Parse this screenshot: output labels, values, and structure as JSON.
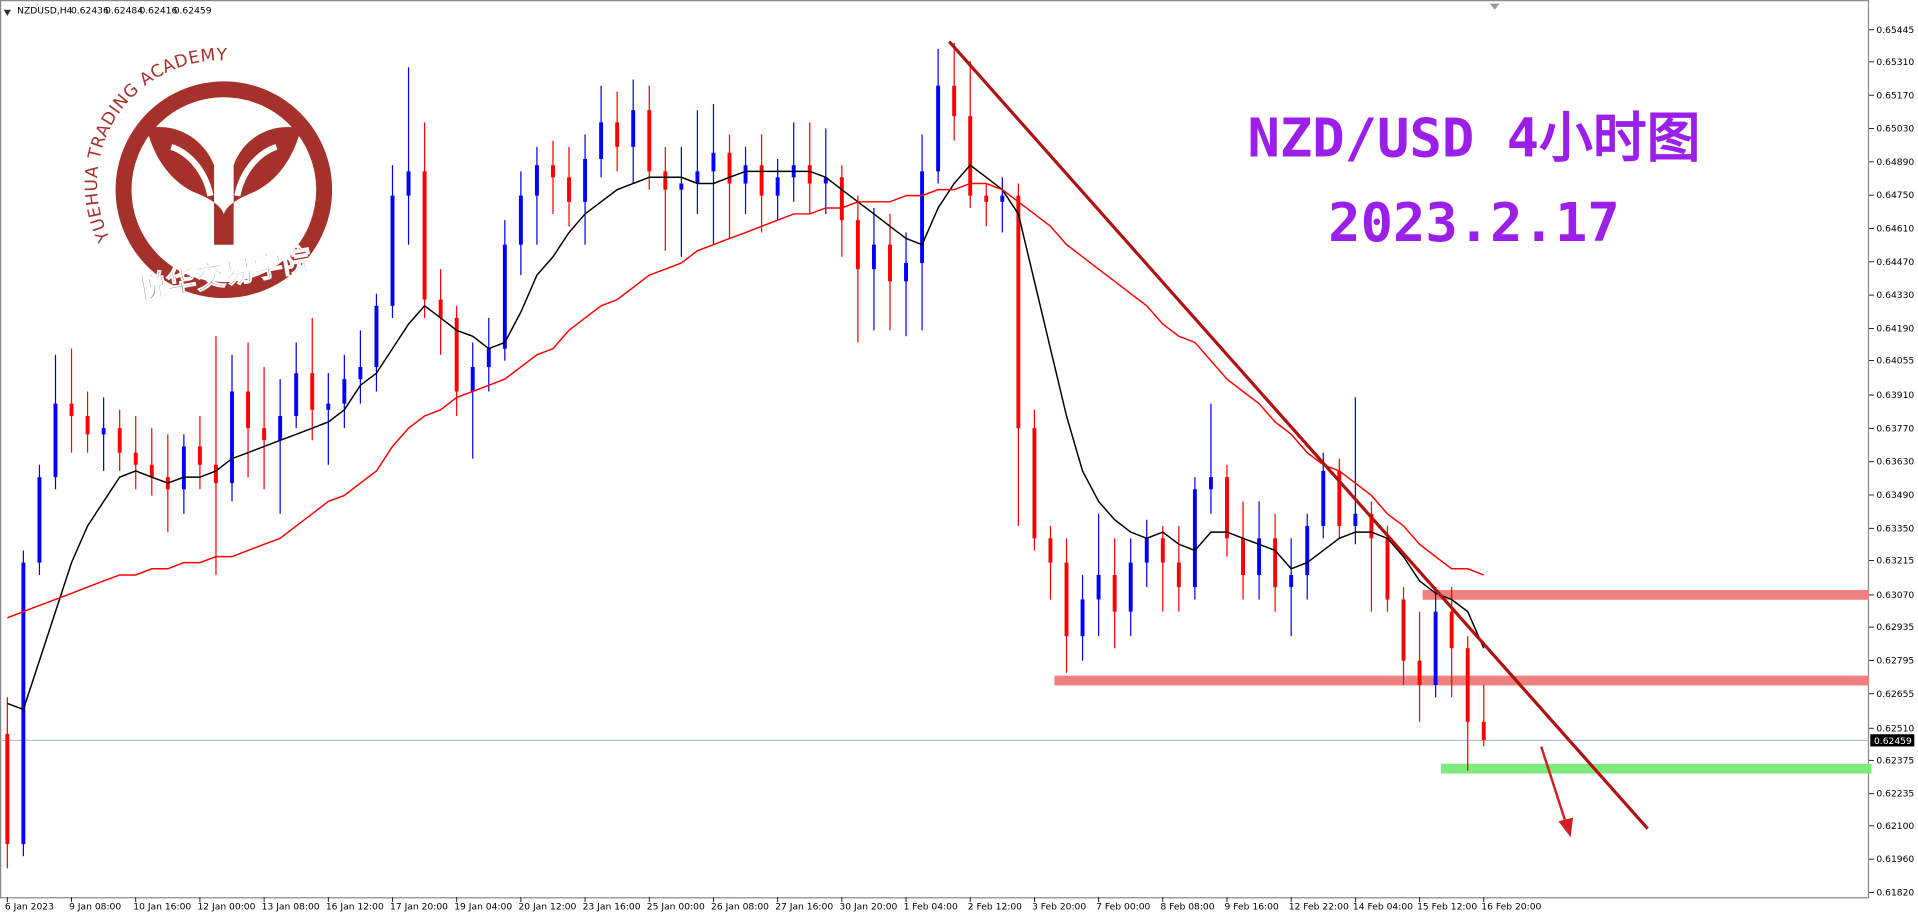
{
  "header": {
    "symbol": "NZDUSD,H4",
    "ohlc": [
      0.62436,
      0.62484,
      0.62416,
      0.62459
    ]
  },
  "logo": {
    "arc_text": "YUEHUA TRADING ACADEMY",
    "name": "悦华交易学院"
  },
  "chart_data": {
    "type": "candlestick",
    "title": "NZD/USD 4小时图",
    "subtitle": "2023.2.17",
    "categories": [
      "6 Jan 2023",
      null,
      null,
      null,
      "9 Jan 08:00",
      null,
      null,
      null,
      "10 Jan 16:00",
      null,
      null,
      null,
      "12 Jan 00:00",
      null,
      null,
      null,
      "13 Jan 08:00",
      null,
      null,
      null,
      "16 Jan 12:00",
      null,
      null,
      null,
      "17 Jan 20:00",
      null,
      null,
      null,
      "19 Jan 04:00",
      null,
      null,
      null,
      "20 Jan 12:00",
      null,
      null,
      null,
      "23 Jan 16:00",
      null,
      null,
      null,
      "25 Jan 00:00",
      null,
      null,
      null,
      "26 Jan 08:00",
      null,
      null,
      null,
      "27 Jan 16:00",
      null,
      null,
      null,
      "30 Jan 20:00",
      null,
      null,
      null,
      "1 Feb 04:00",
      null,
      null,
      null,
      "2 Feb 12:00",
      null,
      null,
      null,
      "3 Feb 20:00",
      null,
      null,
      null,
      "7 Feb 00:00",
      null,
      null,
      null,
      "8 Feb 08:00",
      null,
      null,
      null,
      "9 Feb 16:00",
      null,
      null,
      null,
      "12 Feb 22:00",
      null,
      null,
      null,
      "14 Feb 04:00",
      null,
      null,
      null,
      "15 Feb 12:00",
      null,
      null,
      null,
      "16 Feb 20:00"
    ],
    "ohlc": [
      [
        0.62486,
        0.6264,
        0.61921,
        0.62023
      ],
      [
        0.62023,
        0.63257,
        0.61972,
        0.63206
      ],
      [
        0.63206,
        0.63617,
        0.63154,
        0.63565
      ],
      [
        0.63565,
        0.64079,
        0.63514,
        0.63874
      ],
      [
        0.63874,
        0.64105,
        0.63668,
        0.63822
      ],
      [
        0.63822,
        0.63925,
        0.63668,
        0.63745
      ],
      [
        0.63745,
        0.639,
        0.63591,
        0.63771
      ],
      [
        0.63771,
        0.63848,
        0.63591,
        0.63668
      ],
      [
        0.63668,
        0.63822,
        0.63514,
        0.63617
      ],
      [
        0.63617,
        0.63771,
        0.63488,
        0.63565
      ],
      [
        0.63565,
        0.63745,
        0.63334,
        0.63514
      ],
      [
        0.63514,
        0.63745,
        0.63411,
        0.63694
      ],
      [
        0.63694,
        0.63822,
        0.63514,
        0.63617
      ],
      [
        0.63617,
        0.64157,
        0.63154,
        0.6354
      ],
      [
        0.6354,
        0.64079,
        0.63463,
        0.63925
      ],
      [
        0.63925,
        0.64131,
        0.63565,
        0.63771
      ],
      [
        0.63771,
        0.64028,
        0.63514,
        0.6372
      ],
      [
        0.6372,
        0.63977,
        0.63411,
        0.63822
      ],
      [
        0.63822,
        0.64131,
        0.63771,
        0.64002
      ],
      [
        0.64002,
        0.64234,
        0.6372,
        0.63848
      ],
      [
        0.63848,
        0.64002,
        0.63617,
        0.63874
      ],
      [
        0.63874,
        0.64079,
        0.63771,
        0.63977
      ],
      [
        0.63977,
        0.64182,
        0.63874,
        0.64028
      ],
      [
        0.64028,
        0.64336,
        0.63925,
        0.64285
      ],
      [
        0.64285,
        0.64876,
        0.64234,
        0.64748
      ],
      [
        0.64748,
        0.65287,
        0.64542,
        0.6485
      ],
      [
        0.6485,
        0.65056,
        0.64234,
        0.64311
      ],
      [
        0.64311,
        0.64439,
        0.64079,
        0.64234
      ],
      [
        0.64234,
        0.64285,
        0.63822,
        0.63925
      ],
      [
        0.63925,
        0.64131,
        0.63643,
        0.64028
      ],
      [
        0.64028,
        0.64234,
        0.63925,
        0.64105
      ],
      [
        0.64105,
        0.64645,
        0.64054,
        0.64542
      ],
      [
        0.64542,
        0.6485,
        0.64414,
        0.64748
      ],
      [
        0.64748,
        0.64953,
        0.64542,
        0.64876
      ],
      [
        0.64876,
        0.64979,
        0.64671,
        0.64825
      ],
      [
        0.64825,
        0.64953,
        0.64619,
        0.64722
      ],
      [
        0.64722,
        0.65005,
        0.64542,
        0.64902
      ],
      [
        0.64902,
        0.6521,
        0.64825,
        0.65056
      ],
      [
        0.65056,
        0.65185,
        0.6485,
        0.64953
      ],
      [
        0.64953,
        0.65236,
        0.64799,
        0.65107
      ],
      [
        0.65107,
        0.6521,
        0.64773,
        0.6485
      ],
      [
        0.6485,
        0.64953,
        0.64516,
        0.64773
      ],
      [
        0.64773,
        0.64953,
        0.64491,
        0.64799
      ],
      [
        0.64799,
        0.65107,
        0.64671,
        0.6485
      ],
      [
        0.6485,
        0.65133,
        0.64542,
        0.64928
      ],
      [
        0.64928,
        0.65005,
        0.64568,
        0.64799
      ],
      [
        0.64799,
        0.64953,
        0.64671,
        0.64876
      ],
      [
        0.64876,
        0.65005,
        0.64593,
        0.64748
      ],
      [
        0.64748,
        0.64902,
        0.64645,
        0.64825
      ],
      [
        0.64825,
        0.65056,
        0.64722,
        0.64876
      ],
      [
        0.64876,
        0.65056,
        0.64671,
        0.64799
      ],
      [
        0.64799,
        0.6503,
        0.64671,
        0.64825
      ],
      [
        0.64825,
        0.64876,
        0.64491,
        0.64645
      ],
      [
        0.64645,
        0.64748,
        0.64131,
        0.64439
      ],
      [
        0.64439,
        0.64696,
        0.64182,
        0.64542
      ],
      [
        0.64542,
        0.64671,
        0.64182,
        0.64388
      ],
      [
        0.64388,
        0.64593,
        0.64157,
        0.64465
      ],
      [
        0.64465,
        0.65005,
        0.64182,
        0.6485
      ],
      [
        0.6485,
        0.65364,
        0.64799,
        0.6521
      ],
      [
        0.6521,
        0.6539,
        0.64979,
        0.65082
      ],
      [
        0.65082,
        0.65313,
        0.64696,
        0.64748
      ],
      [
        0.64748,
        0.64799,
        0.64619,
        0.64722
      ],
      [
        0.64722,
        0.64825,
        0.64593,
        0.64748
      ],
      [
        0.64748,
        0.64799,
        0.6336,
        0.63771
      ],
      [
        0.63771,
        0.63848,
        0.63257,
        0.63308
      ],
      [
        0.63308,
        0.6336,
        0.63051,
        0.63206
      ],
      [
        0.63206,
        0.63308,
        0.62743,
        0.62897
      ],
      [
        0.62897,
        0.63154,
        0.62794,
        0.63051
      ],
      [
        0.63051,
        0.63411,
        0.62897,
        0.63154
      ],
      [
        0.63154,
        0.63308,
        0.62846,
        0.63
      ],
      [
        0.63,
        0.63308,
        0.62897,
        0.63206
      ],
      [
        0.63206,
        0.63386,
        0.63103,
        0.63308
      ],
      [
        0.63308,
        0.6336,
        0.63,
        0.63206
      ],
      [
        0.63206,
        0.6336,
        0.63,
        0.63103
      ],
      [
        0.63103,
        0.63565,
        0.63051,
        0.63514
      ],
      [
        0.63514,
        0.63874,
        0.63411,
        0.63565
      ],
      [
        0.63565,
        0.63617,
        0.63231,
        0.63308
      ],
      [
        0.63308,
        0.63463,
        0.63051,
        0.63154
      ],
      [
        0.63154,
        0.63463,
        0.63051,
        0.63308
      ],
      [
        0.63308,
        0.63411,
        0.63,
        0.63103
      ],
      [
        0.63103,
        0.63308,
        0.62897,
        0.63154
      ],
      [
        0.63154,
        0.63411,
        0.63051,
        0.6336
      ],
      [
        0.6336,
        0.63668,
        0.63308,
        0.63591
      ],
      [
        0.63591,
        0.63643,
        0.63308,
        0.6336
      ],
      [
        0.6336,
        0.639,
        0.63283,
        0.63411
      ],
      [
        0.63411,
        0.63463,
        0.63,
        0.63308
      ],
      [
        0.63308,
        0.6336,
        0.63,
        0.63051
      ],
      [
        0.63051,
        0.63103,
        0.62692,
        0.62794
      ],
      [
        0.62794,
        0.63,
        0.62537,
        0.62692
      ],
      [
        0.62692,
        0.63103,
        0.6264,
        0.63
      ],
      [
        0.63,
        0.63103,
        0.6264,
        0.62846
      ],
      [
        0.62846,
        0.62897,
        0.62332,
        0.62537
      ],
      [
        0.62537,
        0.62692,
        0.62435,
        0.6246
      ]
    ],
    "up_color": "#0000ff",
    "down_color": "#ff0000",
    "series": [
      {
        "color": "#000000",
        "values": [
          0.62614,
          0.62589,
          0.62794,
          0.63,
          0.63206,
          0.6336,
          0.63463,
          0.63565,
          0.63591,
          0.63565,
          0.6354,
          0.63565,
          0.63565,
          0.63591,
          0.63643,
          0.63668,
          0.63694,
          0.6372,
          0.63745,
          0.63771,
          0.63797,
          0.63848,
          0.63951,
          0.64002,
          0.64105,
          0.64208,
          0.64285,
          0.64234,
          0.64182,
          0.64157,
          0.64105,
          0.64131,
          0.64259,
          0.64414,
          0.64491,
          0.64593,
          0.64671,
          0.64722,
          0.64773,
          0.64799,
          0.64825,
          0.64825,
          0.64825,
          0.64799,
          0.64799,
          0.64825,
          0.6485,
          0.6485,
          0.6485,
          0.6485,
          0.6485,
          0.64825,
          0.64773,
          0.64722,
          0.64671,
          0.64619,
          0.64568,
          0.64542,
          0.64696,
          0.64799,
          0.64876,
          0.64825,
          0.64773,
          0.64671,
          0.64388,
          0.64105,
          0.63822,
          0.63591,
          0.63463,
          0.63386,
          0.63334,
          0.63308,
          0.63334,
          0.63283,
          0.63257,
          0.63334,
          0.63334,
          0.63308,
          0.63283,
          0.63257,
          0.6318,
          0.63206,
          0.63257,
          0.63308,
          0.63334,
          0.63334,
          0.63308,
          0.63231,
          0.63129,
          0.63077,
          0.63051,
          0.63,
          0.62846
        ]
      },
      {
        "color": "#ff0000",
        "values": [
          0.62974,
          0.63,
          0.63026,
          0.63051,
          0.63077,
          0.63103,
          0.63129,
          0.63154,
          0.63154,
          0.6318,
          0.6318,
          0.63206,
          0.63206,
          0.63231,
          0.63231,
          0.63257,
          0.63283,
          0.63308,
          0.6336,
          0.63411,
          0.63463,
          0.63488,
          0.6354,
          0.63591,
          0.63694,
          0.63771,
          0.63822,
          0.63848,
          0.639,
          0.63925,
          0.63951,
          0.63977,
          0.64028,
          0.64079,
          0.64105,
          0.64182,
          0.64234,
          0.64285,
          0.64311,
          0.64362,
          0.64414,
          0.64439,
          0.64465,
          0.64516,
          0.64542,
          0.64568,
          0.64593,
          0.64619,
          0.64645,
          0.64671,
          0.64671,
          0.64696,
          0.64696,
          0.64722,
          0.64722,
          0.64722,
          0.64748,
          0.64748,
          0.64773,
          0.64773,
          0.64799,
          0.64799,
          0.64773,
          0.64722,
          0.64671,
          0.64619,
          0.64542,
          0.64491,
          0.64439,
          0.64388,
          0.64336,
          0.64285,
          0.64208,
          0.64157,
          0.64131,
          0.64054,
          0.63977,
          0.63925,
          0.63874,
          0.63797,
          0.63745,
          0.63668,
          0.63617,
          0.63591,
          0.6354,
          0.63488,
          0.63411,
          0.6336,
          0.63283,
          0.63231,
          0.6318,
          0.6318,
          0.63154
        ]
      }
    ],
    "ylim": [
      0.618,
      0.6557
    ],
    "yticks": [
      0.65445,
      {
        "value": 0.6531,
        "label": "0.65310"
      },
      {
        "value": 0.6517,
        "label": "0.65170"
      },
      {
        "value": 0.6503,
        "label": "0.65030"
      },
      {
        "value": 0.6489,
        "label": "0.64890"
      },
      {
        "value": 0.6475,
        "label": "0.64750"
      },
      {
        "value": 0.6461,
        "label": "0.64610"
      },
      {
        "value": 0.6447,
        "label": "0.64470"
      },
      {
        "value": 0.6433,
        "label": "0.64330"
      },
      {
        "value": 0.6419,
        "label": "0.64190"
      },
      0.64055,
      {
        "value": 0.6391,
        "label": "0.63910"
      },
      {
        "value": 0.6377,
        "label": "0.63770"
      },
      {
        "value": 0.6363,
        "label": "0.63630"
      },
      {
        "value": 0.6349,
        "label": "0.63490"
      },
      {
        "value": 0.6335,
        "label": "0.63350"
      },
      0.63215,
      {
        "value": 0.6307,
        "label": "0.63070"
      },
      0.62935,
      0.62795,
      0.62655,
      {
        "value": 0.6251,
        "label": "0.62510"
      },
      0.62375,
      0.62235,
      {
        "value": 0.621,
        "label": "0.62100"
      },
      {
        "value": 0.6196,
        "label": "0.61960"
      },
      {
        "value": 0.6182,
        "label": "0.61820"
      }
    ],
    "last_price": 0.62459
  }
}
